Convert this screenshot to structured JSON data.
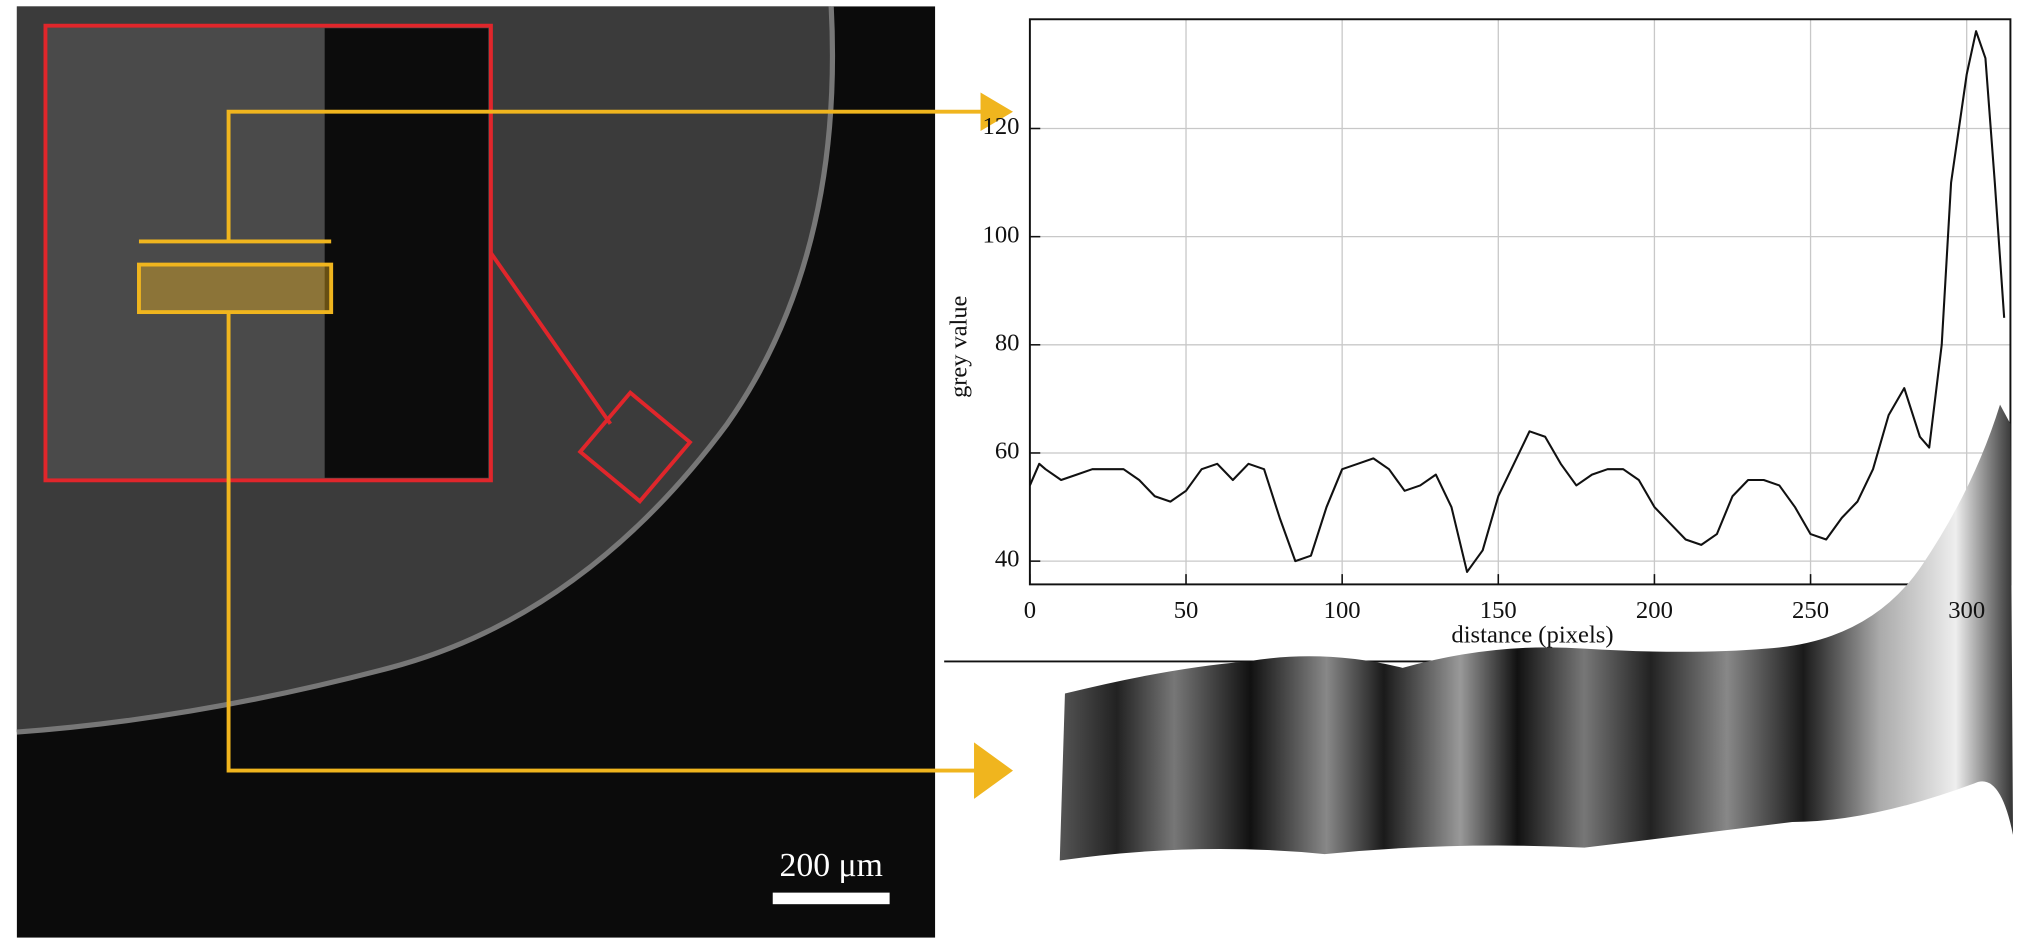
{
  "chart_data": {
    "type": "line",
    "y_label": "grey value",
    "x_label": "distance (pixels)",
    "x": [
      0,
      3,
      5,
      10,
      15,
      20,
      30,
      35,
      40,
      45,
      50,
      55,
      60,
      65,
      70,
      75,
      80,
      85,
      90,
      95,
      100,
      105,
      110,
      115,
      120,
      125,
      130,
      135,
      140,
      145,
      150,
      155,
      160,
      165,
      170,
      175,
      180,
      185,
      190,
      195,
      200,
      205,
      210,
      215,
      220,
      225,
      230,
      235,
      240,
      245,
      250,
      255,
      260,
      265,
      270,
      275,
      280,
      285,
      288,
      292,
      295,
      300,
      303,
      306,
      309,
      312
    ],
    "values": [
      54,
      58,
      57,
      55,
      56,
      57,
      57,
      55,
      52,
      51,
      53,
      57,
      58,
      55,
      58,
      57,
      48,
      40,
      41,
      50,
      57,
      58,
      59,
      57,
      53,
      54,
      56,
      50,
      38,
      42,
      52,
      58,
      64,
      63,
      58,
      54,
      56,
      57,
      57,
      55,
      50,
      47,
      44,
      43,
      45,
      52,
      55,
      55,
      54,
      50,
      45,
      44,
      48,
      51,
      57,
      67,
      72,
      63,
      61,
      80,
      110,
      130,
      138,
      133,
      110,
      85
    ],
    "color": "#111111",
    "xlim": [
      0,
      314
    ],
    "ylim": [
      35.7,
      140.2
    ],
    "xticks": [
      0,
      50,
      100,
      150,
      200,
      250,
      300
    ],
    "yticks": [
      40,
      60,
      80,
      100,
      120
    ],
    "grid": true
  },
  "micrograph": {
    "scale_bar": "200 μm"
  }
}
